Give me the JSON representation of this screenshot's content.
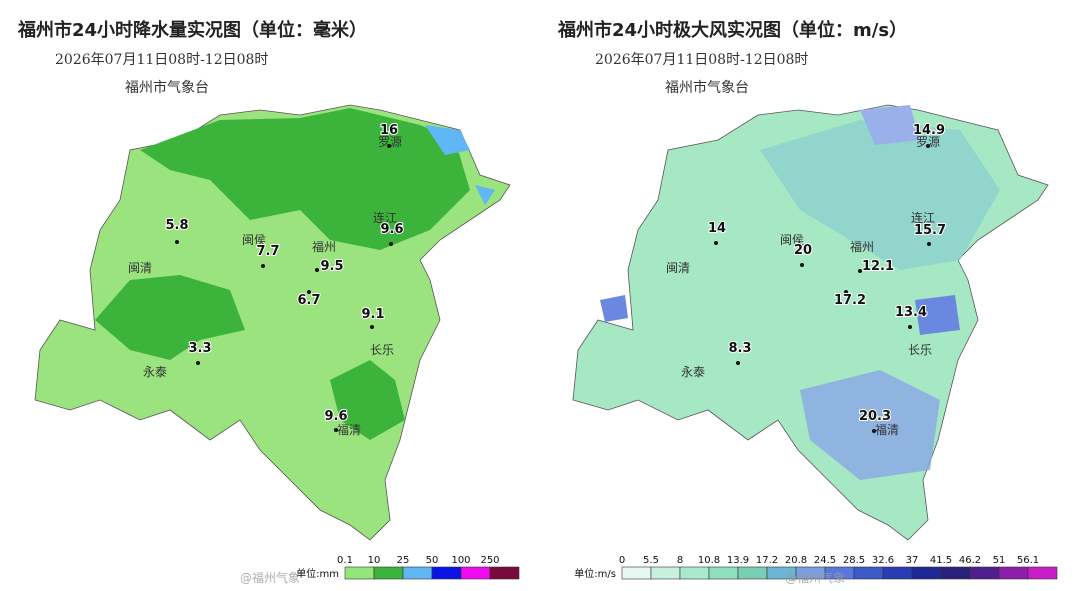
{
  "left": {
    "title": "福州市24小时降水量实况图（单位：毫米）",
    "date": "2026年07月11日08时-12日08时",
    "agency": "福州市气象台",
    "cities": [
      "罗源",
      "连江",
      "闽侯",
      "福州",
      "闽清",
      "长乐",
      "永泰",
      "福清"
    ],
    "stations": [
      16,
      9.6,
      5.8,
      7.7,
      9.5,
      6.7,
      9.1,
      3.3,
      9.6
    ],
    "legend": {
      "unit": "单位:mm",
      "ticks": [
        0.1,
        10,
        25,
        50,
        100,
        250
      ],
      "colors": [
        "#92e67a",
        "#3cb43c",
        "#61b6f5",
        "#0a14e6",
        "#f00af0",
        "#7a0a3c"
      ]
    },
    "watermark": "@福州气象"
  },
  "right": {
    "title": "福州市24小时极大风实况图（单位：m/s）",
    "date": "2026年07月11日08时-12日08时",
    "agency": "福州市气象台",
    "cities": [
      "罗源",
      "连江",
      "闽侯",
      "福州",
      "闽清",
      "长乐",
      "永泰",
      "福清"
    ],
    "stations": [
      14.9,
      14,
      15.7,
      20,
      12.1,
      17.2,
      13.4,
      8.3,
      20.3
    ],
    "legend": {
      "unit": "单位:m/s",
      "ticks": [
        0,
        5.5,
        8,
        10.8,
        13.9,
        17.2,
        20.8,
        24.5,
        28.5,
        32.6,
        37,
        41.5,
        46.2,
        51,
        56.1
      ],
      "colors": [
        "#e6f8f0",
        "#c8f0dc",
        "#aaeacc",
        "#8ee0bc",
        "#78cfb4",
        "#6ab6d4",
        "#7a9ee6",
        "#5a78dc",
        "#3c5ac8",
        "#2a3cb4",
        "#1e2896",
        "#28207a",
        "#501e8c",
        "#8c1eaa",
        "#c81ec8"
      ]
    },
    "watermark": "@福州气象"
  }
}
